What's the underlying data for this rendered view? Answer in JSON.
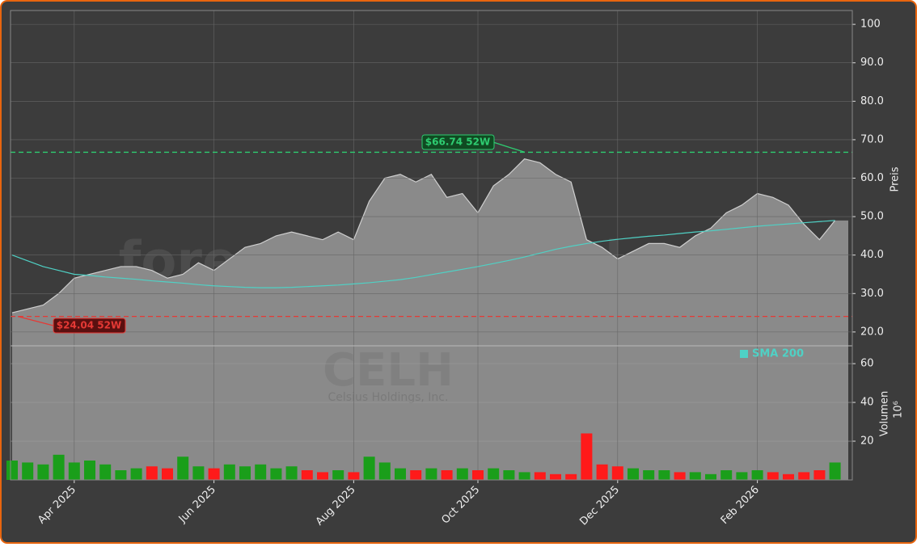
{
  "chart_data": [
    {
      "type": "area",
      "values": [
        25,
        26,
        27,
        30,
        34,
        35,
        36,
        37,
        37,
        36,
        34,
        35,
        38,
        36,
        39,
        42,
        43,
        45,
        46,
        45,
        44,
        46,
        44,
        54,
        60,
        61,
        59,
        61,
        55,
        56,
        51,
        58,
        61,
        65,
        64,
        61,
        59,
        44,
        42,
        39,
        41,
        43,
        43,
        42,
        45,
        47,
        51,
        53,
        56,
        55,
        53,
        48,
        44,
        49
      ],
      "color": "#8a8a8a",
      "series": [
        {
          "name": "SMA 200",
          "color": "#4fd1c5",
          "values": [
            40,
            38.5,
            37,
            36,
            35,
            34.7,
            34.3,
            34,
            33.7,
            33.3,
            33,
            32.7,
            32.3,
            32,
            31.8,
            31.6,
            31.5,
            31.5,
            31.6,
            31.8,
            32,
            32.2,
            32.5,
            32.8,
            33.2,
            33.6,
            34.2,
            34.9,
            35.6,
            36.3,
            37,
            37.8,
            38.6,
            39.5,
            40.5,
            41.5,
            42.3,
            43,
            43.6,
            44.1,
            44.5,
            44.9,
            45.2,
            45.6,
            46,
            46.3,
            46.7,
            47.1,
            47.5,
            47.8,
            48.1,
            48.4,
            48.7,
            49
          ]
        }
      ],
      "y_label": "Preis",
      "ylim": [
        16.4,
        103.6
      ],
      "yticks": [
        {
          "value": 20,
          "label": "20.0"
        },
        {
          "value": 30,
          "label": "30.0"
        },
        {
          "value": 40,
          "label": "40.0"
        },
        {
          "value": 50,
          "label": "50.0"
        },
        {
          "value": 60,
          "label": "60.0"
        },
        {
          "value": 70,
          "label": "70.0"
        },
        {
          "value": 80,
          "label": "80.0"
        },
        {
          "value": 90,
          "label": "90.0"
        },
        100
      ],
      "grid": true,
      "reference_lines": [
        {
          "value": 66.74,
          "label": "$66.74 52W",
          "color": "#2ecc71"
        },
        {
          "value": 24.04,
          "label": "$24.04 52W",
          "color": "#e53935"
        }
      ],
      "watermark": [
        "forexsignale.trade",
        "CELH",
        "Celsius Holdings, Inc."
      ]
    },
    {
      "type": "bar",
      "categories": [
        null,
        null,
        null,
        null,
        "Apr 2025",
        null,
        null,
        null,
        null,
        null,
        null,
        null,
        null,
        "Jun 2025",
        null,
        null,
        null,
        null,
        null,
        null,
        null,
        null,
        "Aug 2025",
        null,
        null,
        null,
        null,
        null,
        null,
        null,
        "Oct 2025",
        null,
        null,
        null,
        null,
        null,
        null,
        null,
        null,
        "Dec 2025",
        null,
        null,
        null,
        null,
        null,
        null,
        null,
        null,
        "Feb 2026",
        null,
        null,
        null,
        null,
        null
      ],
      "values": [
        10,
        9,
        8,
        13,
        9,
        10,
        8,
        5,
        6,
        7,
        6,
        12,
        7,
        6,
        8,
        7,
        8,
        6,
        7,
        5,
        4,
        5,
        4,
        12,
        9,
        6,
        5,
        6,
        5,
        6,
        5,
        6,
        5,
        4,
        4,
        3,
        3,
        24,
        8,
        7,
        6,
        5,
        5,
        4,
        4,
        3,
        5,
        4,
        5,
        4,
        3,
        4,
        5,
        9
      ],
      "up_color": "#1a9e1a",
      "down_color": "#ff1a1a",
      "y_label": "Volumen",
      "y_unit": "10⁶",
      "ylim": [
        0,
        69.2
      ],
      "yticks": [
        20,
        40,
        60
      ]
    }
  ]
}
